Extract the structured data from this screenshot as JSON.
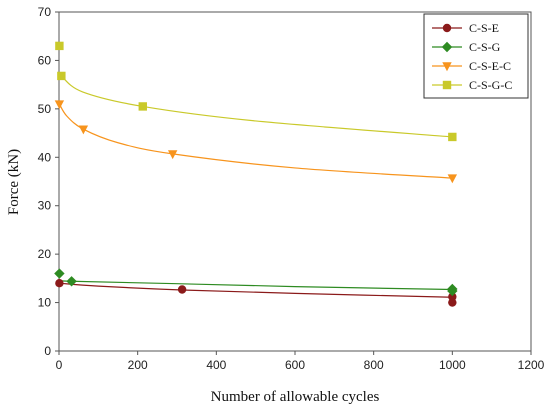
{
  "chart_data": {
    "type": "scatter",
    "xlabel": "Number of allowable cycles",
    "ylabel": "Force (kN)",
    "xlim": [
      0,
      1200
    ],
    "ylim": [
      0,
      70
    ],
    "xticks": [
      0,
      200,
      400,
      600,
      800,
      1000,
      1200
    ],
    "yticks": [
      0,
      10,
      20,
      30,
      40,
      50,
      60,
      70
    ],
    "grid": false,
    "legend_position": "top-right",
    "series": [
      {
        "name": "C-S-E",
        "color": "#8B1A1A",
        "marker": "circle",
        "points": [
          [
            1,
            14.0
          ],
          [
            313,
            12.7
          ],
          [
            1000,
            10.0
          ],
          [
            1000,
            11.2
          ]
        ],
        "trend": [
          [
            1,
            14.0
          ],
          [
            100,
            13.4
          ],
          [
            313,
            12.6
          ],
          [
            600,
            11.9
          ],
          [
            1000,
            11.1
          ]
        ]
      },
      {
        "name": "C-S-G",
        "color": "#2E8B22",
        "marker": "diamond",
        "points": [
          [
            1,
            16.0
          ],
          [
            32,
            14.4
          ],
          [
            1000,
            12.8
          ],
          [
            1000,
            12.4
          ]
        ],
        "trend": [
          [
            1,
            14.6
          ],
          [
            32,
            14.4
          ],
          [
            300,
            13.9
          ],
          [
            600,
            13.3
          ],
          [
            1000,
            12.7
          ]
        ]
      },
      {
        "name": "C-S-E-C",
        "color": "#F7941D",
        "marker": "triangle-down",
        "points": [
          [
            1,
            51.0
          ],
          [
            62,
            45.8
          ],
          [
            289,
            40.7
          ],
          [
            1000,
            35.7
          ]
        ],
        "trend": [
          [
            1,
            51.0
          ],
          [
            20,
            48.5
          ],
          [
            62,
            45.8
          ],
          [
            150,
            43.0
          ],
          [
            289,
            40.7
          ],
          [
            600,
            37.8
          ],
          [
            1000,
            35.7
          ]
        ]
      },
      {
        "name": "C-S-G-C",
        "color": "#C9C92A",
        "marker": "square",
        "points": [
          [
            1,
            63.0
          ],
          [
            6,
            56.8
          ],
          [
            213,
            50.5
          ],
          [
            1000,
            44.2
          ]
        ],
        "trend": [
          [
            1,
            57.5
          ],
          [
            6,
            56.8
          ],
          [
            60,
            53.5
          ],
          [
            213,
            50.5
          ],
          [
            500,
            47.5
          ],
          [
            1000,
            44.2
          ]
        ]
      }
    ]
  }
}
